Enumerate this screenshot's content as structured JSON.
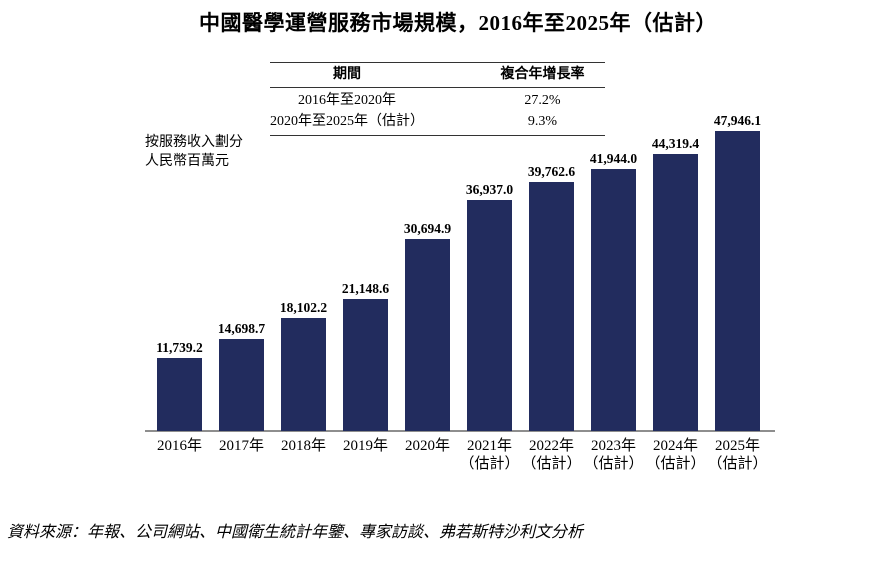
{
  "title": "中國醫學運營服務市場規模，2016年至2025年（估計）",
  "cagr_table": {
    "headers": [
      "期間",
      "複合年增長率"
    ],
    "rows": [
      {
        "period": "2016年至2020年",
        "rate": "27.2%"
      },
      {
        "period": "2020年至2025年（估計）",
        "rate": "9.3%"
      }
    ]
  },
  "unit_note": {
    "line1": "按服務收入劃分",
    "line2": "人民幣百萬元"
  },
  "source": "資料來源：年報、公司網站、中國衛生統計年鑒、專家訪談、弗若斯特沙利文分析",
  "colors": {
    "bar": "#222c5e",
    "axis": "#8e8e8e"
  },
  "chart_data": {
    "type": "bar",
    "title": "中國醫學運營服務市場規模，2016年至2025年（估計）",
    "ylabel": "按服務收入劃分 人民幣百萬元",
    "xlabel": "",
    "ylim": [
      0,
      48000
    ],
    "grid": false,
    "legend": null,
    "categories": [
      "2016年",
      "2017年",
      "2018年",
      "2019年",
      "2020年",
      "2021年（估計）",
      "2022年（估計）",
      "2023年（估計）",
      "2024年（估計）",
      "2025年（估計）"
    ],
    "category_lines": [
      [
        "2016年",
        ""
      ],
      [
        "2017年",
        ""
      ],
      [
        "2018年",
        ""
      ],
      [
        "2019年",
        ""
      ],
      [
        "2020年",
        ""
      ],
      [
        "2021年",
        "（估計）"
      ],
      [
        "2022年",
        "（估計）"
      ],
      [
        "2023年",
        "（估計）"
      ],
      [
        "2024年",
        "（估計）"
      ],
      [
        "2025年",
        "（估計）"
      ]
    ],
    "values": [
      11739.2,
      14698.7,
      18102.2,
      21148.6,
      30694.9,
      36937.0,
      39762.6,
      41944.0,
      44319.4,
      47946.1
    ],
    "value_labels": [
      "11,739.2",
      "14,698.7",
      "18,102.2",
      "21,148.6",
      "30,694.9",
      "36,937.0",
      "39,762.6",
      "41,944.0",
      "44,319.4",
      "47,946.1"
    ],
    "cagr": [
      {
        "period": "2016年至2020年",
        "rate": "27.2%"
      },
      {
        "period": "2020年至2025年（估計）",
        "rate": "9.3%"
      }
    ]
  }
}
